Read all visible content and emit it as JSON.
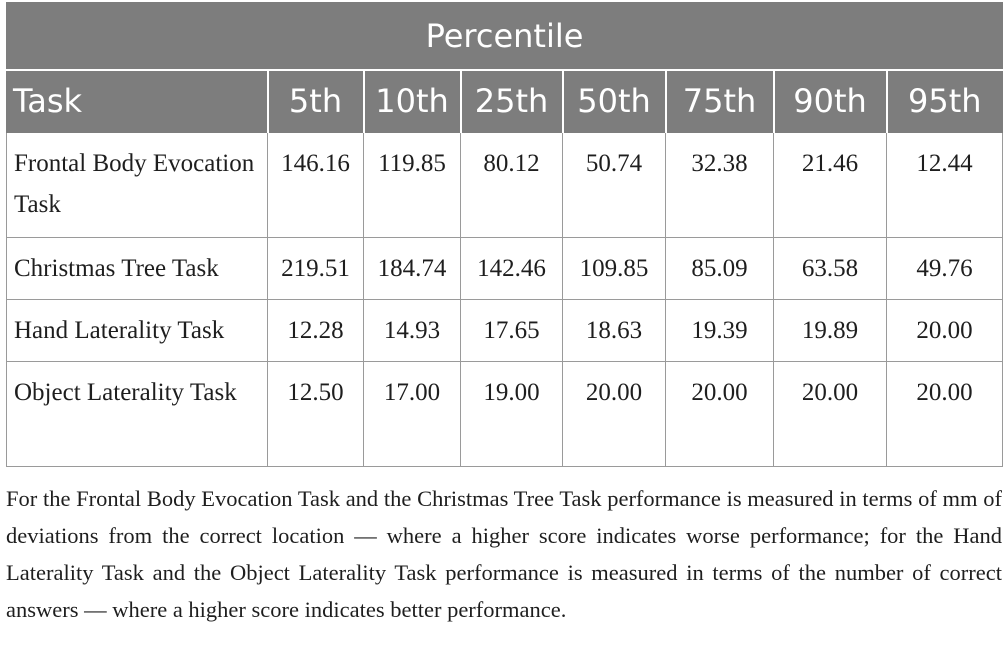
{
  "table": {
    "banner": "Percentile",
    "columns": [
      "Task",
      "5th",
      "10th",
      "25th",
      "50th",
      "75th",
      "90th",
      "95th"
    ],
    "rows": [
      {
        "task": "Frontal Body Evocation Task",
        "values": [
          "146.16",
          "119.85",
          "80.12",
          "50.74",
          "32.38",
          "21.46",
          "12.44"
        ]
      },
      {
        "task": "Christmas Tree Task",
        "values": [
          "219.51",
          "184.74",
          "142.46",
          "109.85",
          "85.09",
          "63.58",
          "49.76"
        ]
      },
      {
        "task": "Hand Laterality Task",
        "values": [
          "12.28",
          "14.93",
          "17.65",
          "18.63",
          "19.39",
          "19.89",
          "20.00"
        ]
      },
      {
        "task": "Object Laterality Task",
        "values": [
          "12.50",
          "17.00",
          "19.00",
          "20.00",
          "20.00",
          "20.00",
          "20.00"
        ]
      }
    ]
  },
  "footnote": "For the Frontal Body Evocation Task and the Christmas Tree Task performance is measured in terms of mm of deviations from the correct location — where a higher score indicates worse performance; for the Hand Laterality Task and the Object Laterality Task performance is measured in terms of the number of correct answers — where a higher score indicates better performance."
}
